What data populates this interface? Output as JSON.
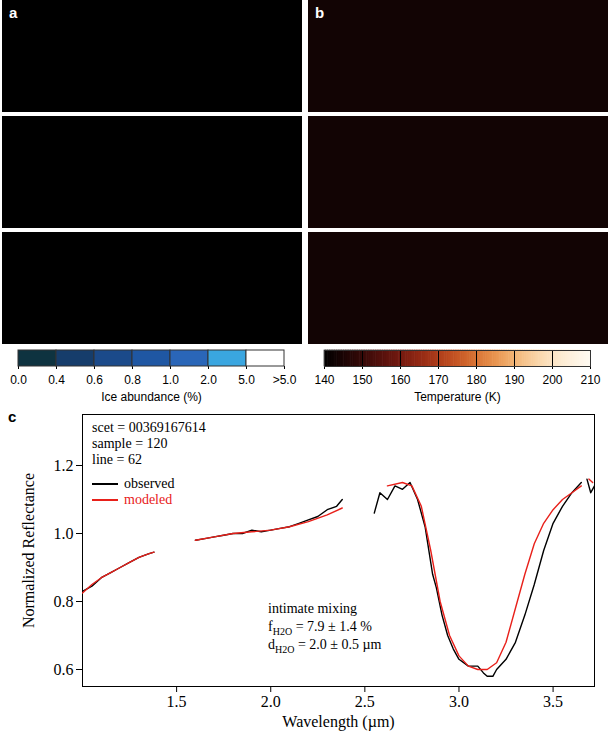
{
  "chart_data": [
    {
      "type": "image",
      "panel_label": "a",
      "colorbar": {
        "label": "Ice abundance (%)",
        "bins": [
          0,
          0.4,
          0.6,
          0.8,
          1,
          2,
          5
        ],
        "colors": [
          "#0e3340",
          "#163d6b",
          "#1b4a8a",
          "#1f57a3",
          "#2a66b8",
          "#3aa6e0",
          "#ffffff"
        ],
        "ticks": [
          {
            "value": 0,
            "label": "0.0"
          },
          0.4,
          0.6,
          0.8,
          {
            "value": 1,
            "label": "1.0"
          },
          {
            "value": 2,
            "label": "2.0"
          },
          {
            "value": 5,
            "label": "5.0"
          }
        ],
        "over_label": ">5.0"
      }
    },
    {
      "type": "image",
      "panel_label": "b",
      "colorbar": {
        "label": "Temperature (K)",
        "lim": [
          140,
          210
        ],
        "ticks": [
          140,
          150,
          160,
          170,
          180,
          190,
          200,
          210
        ],
        "colors": [
          "#000000",
          "#3d0a0a",
          "#8a1e12",
          "#c9521f",
          "#f0a050",
          "#fde6c4",
          "#fffaf2"
        ]
      }
    },
    {
      "type": "line",
      "panel_label": "c",
      "xlabel": "Wavelength (µm)",
      "ylabel": "Normalized Reflectance",
      "xlim": [
        1.0,
        3.72
      ],
      "ylim": [
        0.55,
        1.35
      ],
      "xticks": [
        1.5,
        {
          "value": 2,
          "label": "2.0"
        },
        2.5,
        {
          "value": 3,
          "label": "3.0"
        },
        3.5
      ],
      "yticks": [
        0.6,
        0.8,
        {
          "value": 1,
          "label": "1.0"
        },
        1.2
      ],
      "legend": "top-left",
      "annotations": [
        "scet = 00369167614",
        "sample = 120",
        "line = 62",
        "intimate mixing",
        {
          "text": "f",
          "subscript": "H2O",
          "suffix": " = 7.9 ± 1.4 %"
        },
        {
          "text": "d",
          "subscript": "H2O",
          "suffix": " = 2.0 ± 0.5 µm"
        }
      ],
      "series": [
        {
          "name": "observed",
          "color": "#000000",
          "x": [
            1.0,
            1.05,
            1.1,
            1.15,
            1.2,
            1.25,
            1.3,
            1.35,
            1.38,
            1.5,
            1.6,
            1.65,
            1.7,
            1.75,
            1.8,
            1.85,
            1.9,
            1.95,
            2.0,
            2.05,
            2.1,
            2.15,
            2.2,
            2.25,
            2.3,
            2.35,
            2.38,
            2.47,
            2.55,
            2.58,
            2.62,
            2.66,
            2.7,
            2.74,
            2.78,
            2.82,
            2.86,
            2.88,
            2.91,
            2.94,
            2.97,
            3.0,
            3.05,
            3.1,
            3.13,
            3.15,
            3.18,
            3.2,
            3.25,
            3.3,
            3.35,
            3.4,
            3.45,
            3.5,
            3.55,
            3.6,
            3.65,
            3.67,
            3.68,
            3.7,
            3.72
          ],
          "values": [
            0.83,
            0.845,
            0.87,
            0.885,
            0.9,
            0.915,
            0.93,
            0.94,
            0.945,
            null,
            0.98,
            0.985,
            0.99,
            0.995,
            1.0,
            1.0,
            1.01,
            1.005,
            1.01,
            1.015,
            1.02,
            1.03,
            1.04,
            1.05,
            1.07,
            1.08,
            1.1,
            null,
            1.06,
            1.12,
            1.1,
            1.14,
            1.13,
            1.15,
            1.1,
            1.02,
            0.88,
            0.84,
            0.76,
            0.7,
            0.66,
            0.63,
            0.61,
            0.61,
            0.59,
            0.58,
            0.58,
            0.6,
            0.63,
            0.68,
            0.76,
            0.85,
            0.95,
            1.03,
            1.08,
            1.12,
            1.15,
            null,
            1.16,
            1.12,
            1.14
          ]
        },
        {
          "name": "modeled",
          "color": "#e8201a",
          "x": [
            1.0,
            1.05,
            1.1,
            1.15,
            1.2,
            1.25,
            1.3,
            1.35,
            1.38,
            1.5,
            1.6,
            1.7,
            1.8,
            1.9,
            2.0,
            2.1,
            2.2,
            2.3,
            2.38,
            2.5,
            2.62,
            2.7,
            2.75,
            2.8,
            2.85,
            2.9,
            2.95,
            3.0,
            3.05,
            3.1,
            3.15,
            3.2,
            3.25,
            3.3,
            3.35,
            3.4,
            3.45,
            3.5,
            3.55,
            3.6,
            3.65,
            3.67,
            3.69,
            3.71
          ],
          "values": [
            0.825,
            0.85,
            0.87,
            0.885,
            0.9,
            0.915,
            0.93,
            0.94,
            0.945,
            null,
            0.98,
            0.99,
            1.0,
            1.005,
            1.01,
            1.02,
            1.035,
            1.055,
            1.075,
            null,
            1.14,
            1.15,
            1.14,
            1.08,
            0.95,
            0.8,
            0.7,
            0.64,
            0.61,
            0.6,
            0.6,
            0.62,
            0.68,
            0.78,
            0.88,
            0.97,
            1.03,
            1.07,
            1.1,
            1.12,
            1.14,
            null,
            1.16,
            1.15
          ]
        }
      ]
    }
  ]
}
